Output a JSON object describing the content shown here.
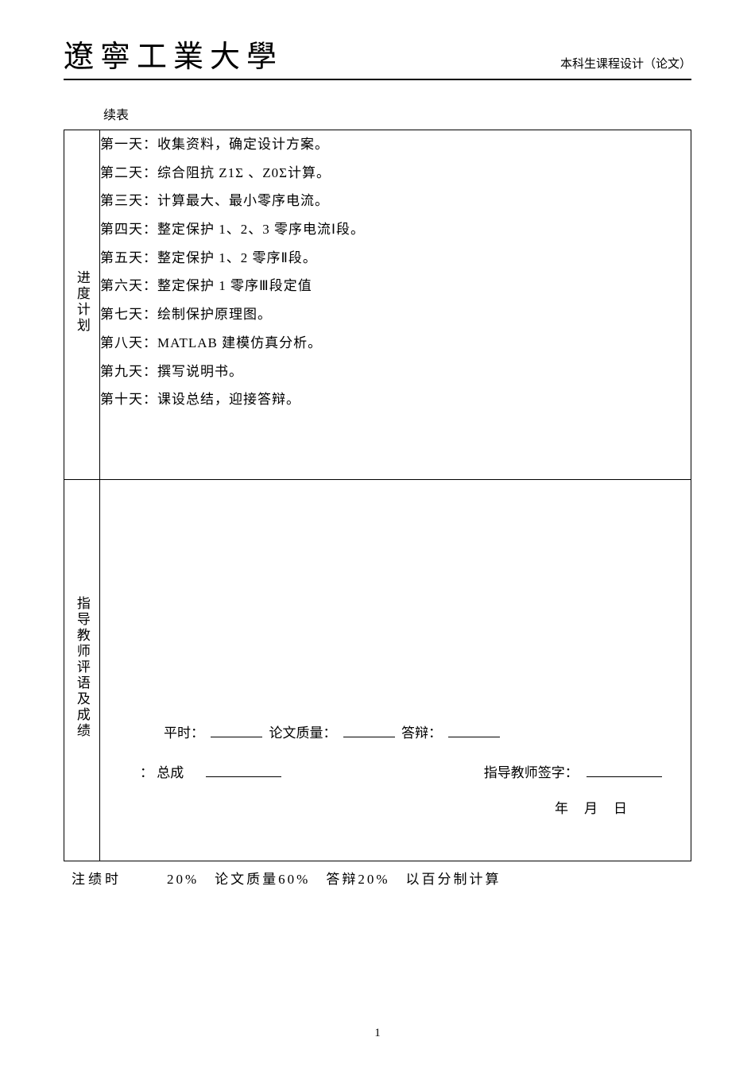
{
  "header": {
    "university": "遼寧工業大學",
    "doc_type": "本科生课程设计（论文）"
  },
  "continue_label": "续表",
  "schedule": {
    "label": "进度计划",
    "items": [
      "第一天：收集资料，确定设计方案。",
      "第二天：综合阻抗 Z1Σ 、Z0Σ计算。",
      "第三天：计算最大、最小零序电流。",
      "第四天：整定保护 1、2、3 零序电流Ⅰ段。",
      "第五天：整定保护 1、2 零序Ⅱ段。",
      "第六天：整定保护 1 零序Ⅲ段定值",
      "第七天：绘制保护原理图。",
      "第八天：MATLAB 建模仿真分析。",
      "第九天：撰写说明书。",
      "第十天：课设总结，迎接答辩。"
    ]
  },
  "comments": {
    "label": "指导教师评语及成绩",
    "daily_label": "平时：",
    "quality_label": "论文质量：",
    "defense_label": "答辩：",
    "total_prefix": "：",
    "total_label": "总成",
    "signature_label": "指导教师签字：",
    "date_y": "年",
    "date_m": "月",
    "date_d": "日"
  },
  "footnote": {
    "label": "注绩时",
    "content": "20%　论文质量60%　答辩20%　以百分制计算"
  },
  "page_number": "1"
}
